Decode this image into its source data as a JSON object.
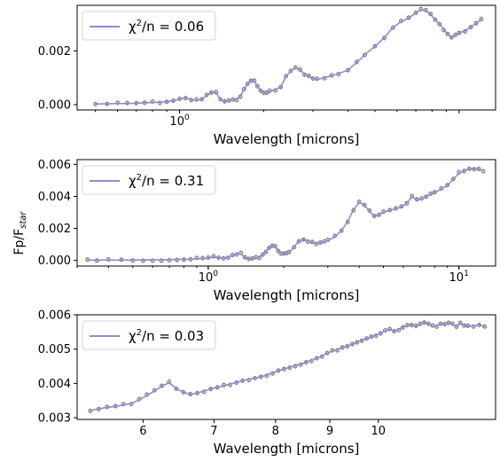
{
  "figure": {
    "ylabel": "Fp/F",
    "ylabel_sub": "star"
  },
  "chart_data": [
    {
      "type": "line",
      "xlabel": "Wavelength [microns]",
      "xscale": "log",
      "xlim": [
        0.43,
        13.5
      ],
      "ylim": [
        -0.0002,
        0.0037
      ],
      "yticks": [
        {
          "v": 0.0,
          "label": "0.000"
        },
        {
          "v": 0.002,
          "label": "0.002"
        }
      ],
      "xticks": [
        {
          "v": 1.0,
          "base": "10",
          "exp": "0"
        }
      ],
      "legend": {
        "label": "χ²/n = 0.06",
        "prefix": "χ",
        "sup": "2",
        "suffix": "/n = 0.06",
        "position": "upper left"
      },
      "points": [
        [
          0.5,
          2e-05
        ],
        [
          0.55,
          3e-05
        ],
        [
          0.6,
          4e-05
        ],
        [
          0.65,
          4e-05
        ],
        [
          0.7,
          5e-05
        ],
        [
          0.75,
          7e-05
        ],
        [
          0.8,
          8e-05
        ],
        [
          0.85,
          9e-05
        ],
        [
          0.9,
          0.00011
        ],
        [
          0.95,
          0.00014
        ],
        [
          1.0,
          0.0002
        ],
        [
          1.05,
          0.00026
        ],
        [
          1.1,
          0.00018
        ],
        [
          1.15,
          0.00016
        ],
        [
          1.2,
          0.0002
        ],
        [
          1.25,
          0.00034
        ],
        [
          1.3,
          0.00046
        ],
        [
          1.35,
          0.00044
        ],
        [
          1.4,
          0.0002
        ],
        [
          1.45,
          0.00012
        ],
        [
          1.5,
          0.00013
        ],
        [
          1.55,
          0.00016
        ],
        [
          1.6,
          0.0002
        ],
        [
          1.65,
          0.00033
        ],
        [
          1.7,
          0.00055
        ],
        [
          1.75,
          0.00077
        ],
        [
          1.8,
          0.00092
        ],
        [
          1.85,
          0.00087
        ],
        [
          1.9,
          0.00068
        ],
        [
          1.95,
          0.00052
        ],
        [
          2.0,
          0.00045
        ],
        [
          2.05,
          0.00043
        ],
        [
          2.1,
          0.00049
        ],
        [
          2.2,
          0.00056
        ],
        [
          2.3,
          0.00065
        ],
        [
          2.4,
          0.00104
        ],
        [
          2.5,
          0.00126
        ],
        [
          2.6,
          0.00137
        ],
        [
          2.7,
          0.00128
        ],
        [
          2.8,
          0.00113
        ],
        [
          2.9,
          0.00106
        ],
        [
          3.0,
          0.00096
        ],
        [
          3.1,
          0.00093
        ],
        [
          3.3,
          0.00101
        ],
        [
          3.5,
          0.00107
        ],
        [
          3.7,
          0.00116
        ],
        [
          4.0,
          0.00128
        ],
        [
          4.3,
          0.00157
        ],
        [
          4.6,
          0.00186
        ],
        [
          5.0,
          0.00217
        ],
        [
          5.4,
          0.0025
        ],
        [
          5.8,
          0.00288
        ],
        [
          6.2,
          0.00309
        ],
        [
          6.6,
          0.00322
        ],
        [
          7.0,
          0.00342
        ],
        [
          7.3,
          0.00353
        ],
        [
          7.6,
          0.00349
        ],
        [
          7.9,
          0.00337
        ],
        [
          8.2,
          0.00318
        ],
        [
          8.5,
          0.00301
        ],
        [
          8.8,
          0.00281
        ],
        [
          9.1,
          0.00262
        ],
        [
          9.4,
          0.0025
        ],
        [
          9.7,
          0.0026
        ],
        [
          10.0,
          0.00267
        ],
        [
          10.5,
          0.00275
        ],
        [
          11.0,
          0.00288
        ],
        [
          11.5,
          0.00303
        ],
        [
          12.0,
          0.00317
        ]
      ]
    },
    {
      "type": "line",
      "xlabel": "Wavelength [microns]",
      "xscale": "log",
      "xlim": [
        0.3,
        14.0
      ],
      "ylim": [
        -0.00035,
        0.0063
      ],
      "yticks": [
        {
          "v": 0.0,
          "label": "0.000"
        },
        {
          "v": 0.002,
          "label": "0.002"
        },
        {
          "v": 0.004,
          "label": "0.004"
        },
        {
          "v": 0.006,
          "label": "0.006"
        }
      ],
      "xticks": [
        {
          "v": 1.0,
          "base": "10",
          "exp": "0"
        },
        {
          "v": 10.0,
          "base": "10",
          "exp": "1"
        }
      ],
      "legend": {
        "label": "χ²/n = 0.31",
        "prefix": "χ",
        "sup": "2",
        "suffix": "/n = 0.31",
        "position": "upper left"
      },
      "points": [
        [
          0.33,
          2e-05
        ],
        [
          0.36,
          2e-05
        ],
        [
          0.4,
          2e-05
        ],
        [
          0.45,
          2e-05
        ],
        [
          0.5,
          3e-05
        ],
        [
          0.55,
          3e-05
        ],
        [
          0.6,
          4e-05
        ],
        [
          0.65,
          4e-05
        ],
        [
          0.7,
          5e-05
        ],
        [
          0.75,
          6e-05
        ],
        [
          0.8,
          7e-05
        ],
        [
          0.85,
          8e-05
        ],
        [
          0.9,
          0.0001
        ],
        [
          0.95,
          0.00012
        ],
        [
          1.0,
          0.00016
        ],
        [
          1.05,
          0.00022
        ],
        [
          1.1,
          0.00016
        ],
        [
          1.15,
          0.00015
        ],
        [
          1.2,
          0.00019
        ],
        [
          1.25,
          0.00031
        ],
        [
          1.3,
          0.00043
        ],
        [
          1.35,
          0.00041
        ],
        [
          1.4,
          0.00018
        ],
        [
          1.45,
          0.00011
        ],
        [
          1.5,
          0.00012
        ],
        [
          1.55,
          0.00015
        ],
        [
          1.6,
          0.00022
        ],
        [
          1.65,
          0.00036
        ],
        [
          1.7,
          0.00058
        ],
        [
          1.75,
          0.0008
        ],
        [
          1.8,
          0.00092
        ],
        [
          1.85,
          0.00085
        ],
        [
          1.9,
          0.00064
        ],
        [
          1.95,
          0.00048
        ],
        [
          2.0,
          0.0004
        ],
        [
          2.05,
          0.00039
        ],
        [
          2.1,
          0.00048
        ],
        [
          2.2,
          0.00085
        ],
        [
          2.3,
          0.00122
        ],
        [
          2.4,
          0.00132
        ],
        [
          2.5,
          0.00122
        ],
        [
          2.6,
          0.00112
        ],
        [
          2.7,
          0.00107
        ],
        [
          2.8,
          0.00108
        ],
        [
          2.9,
          0.00113
        ],
        [
          3.0,
          0.00124
        ],
        [
          3.2,
          0.00148
        ],
        [
          3.4,
          0.00186
        ],
        [
          3.6,
          0.00244
        ],
        [
          3.8,
          0.00318
        ],
        [
          4.0,
          0.00362
        ],
        [
          4.2,
          0.00346
        ],
        [
          4.4,
          0.00307
        ],
        [
          4.6,
          0.00275
        ],
        [
          4.8,
          0.00285
        ],
        [
          5.0,
          0.003
        ],
        [
          5.3,
          0.00313
        ],
        [
          5.6,
          0.00322
        ],
        [
          5.9,
          0.00335
        ],
        [
          6.2,
          0.0036
        ],
        [
          6.5,
          0.00398
        ],
        [
          6.8,
          0.00378
        ],
        [
          7.1,
          0.00382
        ],
        [
          7.4,
          0.004
        ],
        [
          7.7,
          0.00412
        ],
        [
          8.0,
          0.00425
        ],
        [
          8.5,
          0.00445
        ],
        [
          9.0,
          0.0047
        ],
        [
          9.5,
          0.00508
        ],
        [
          10.0,
          0.00545
        ],
        [
          10.5,
          0.00562
        ],
        [
          11.0,
          0.00572
        ],
        [
          11.5,
          0.00573
        ],
        [
          12.0,
          0.0057
        ],
        [
          12.5,
          0.00563
        ]
      ]
    },
    {
      "type": "line",
      "xlabel": "Wavelength [microns]",
      "xscale": "log",
      "xlim": [
        5.2,
        12.9
      ],
      "ylim": [
        0.00295,
        0.006
      ],
      "yticks": [
        {
          "v": 0.003,
          "label": "0.003"
        },
        {
          "v": 0.004,
          "label": "0.004"
        },
        {
          "v": 0.005,
          "label": "0.005"
        },
        {
          "v": 0.006,
          "label": "0.006"
        }
      ],
      "xticks": [
        {
          "v": 6,
          "label": "6"
        },
        {
          "v": 7,
          "label": "7"
        },
        {
          "v": 8,
          "label": "8"
        },
        {
          "v": 9,
          "label": "9"
        },
        {
          "v": 10,
          "label": "10"
        }
      ],
      "legend": {
        "label": "χ²/n = 0.03",
        "prefix": "χ",
        "sup": "2",
        "suffix": "/n = 0.03",
        "position": "upper left"
      },
      "points": [
        [
          5.35,
          0.00321
        ],
        [
          5.45,
          0.00326
        ],
        [
          5.55,
          0.0033
        ],
        [
          5.65,
          0.00333
        ],
        [
          5.75,
          0.00337
        ],
        [
          5.85,
          0.00342
        ],
        [
          5.95,
          0.00352
        ],
        [
          6.05,
          0.00365
        ],
        [
          6.15,
          0.00378
        ],
        [
          6.25,
          0.00392
        ],
        [
          6.35,
          0.00402
        ],
        [
          6.45,
          0.00385
        ],
        [
          6.55,
          0.00374
        ],
        [
          6.65,
          0.00368
        ],
        [
          6.75,
          0.00372
        ],
        [
          6.85,
          0.00378
        ],
        [
          6.95,
          0.00384
        ],
        [
          7.05,
          0.00388
        ],
        [
          7.15,
          0.00393
        ],
        [
          7.25,
          0.00398
        ],
        [
          7.35,
          0.00403
        ],
        [
          7.45,
          0.00408
        ],
        [
          7.55,
          0.00412
        ],
        [
          7.65,
          0.00416
        ],
        [
          7.75,
          0.00419
        ],
        [
          7.85,
          0.00425
        ],
        [
          7.95,
          0.00431
        ],
        [
          8.05,
          0.00437
        ],
        [
          8.15,
          0.00442
        ],
        [
          8.25,
          0.00447
        ],
        [
          8.35,
          0.00452
        ],
        [
          8.45,
          0.00457
        ],
        [
          8.55,
          0.00462
        ],
        [
          8.65,
          0.00468
        ],
        [
          8.75,
          0.00474
        ],
        [
          8.85,
          0.0048
        ],
        [
          8.95,
          0.00488
        ],
        [
          9.05,
          0.00494
        ],
        [
          9.15,
          0.00499
        ],
        [
          9.25,
          0.00505
        ],
        [
          9.35,
          0.00509
        ],
        [
          9.45,
          0.00514
        ],
        [
          9.55,
          0.00521
        ],
        [
          9.65,
          0.00526
        ],
        [
          9.75,
          0.00531
        ],
        [
          9.85,
          0.00536
        ],
        [
          9.95,
          0.00541
        ],
        [
          10.05,
          0.00547
        ],
        [
          10.15,
          0.00552
        ],
        [
          10.25,
          0.00558
        ],
        [
          10.35,
          0.00552
        ],
        [
          10.45,
          0.00558
        ],
        [
          10.55,
          0.00564
        ],
        [
          10.65,
          0.00568
        ],
        [
          10.75,
          0.00571
        ],
        [
          10.85,
          0.00566
        ],
        [
          10.95,
          0.00572
        ],
        [
          11.05,
          0.00578
        ],
        [
          11.15,
          0.00573
        ],
        [
          11.25,
          0.00566
        ],
        [
          11.35,
          0.00568
        ],
        [
          11.45,
          0.00574
        ],
        [
          11.55,
          0.0057
        ],
        [
          11.65,
          0.00576
        ],
        [
          11.75,
          0.00572
        ],
        [
          11.85,
          0.00566
        ],
        [
          11.95,
          0.00575
        ],
        [
          12.05,
          0.0057
        ],
        [
          12.15,
          0.00567
        ],
        [
          12.3,
          0.00568
        ],
        [
          12.45,
          0.00571
        ],
        [
          12.6,
          0.00565
        ]
      ]
    }
  ]
}
